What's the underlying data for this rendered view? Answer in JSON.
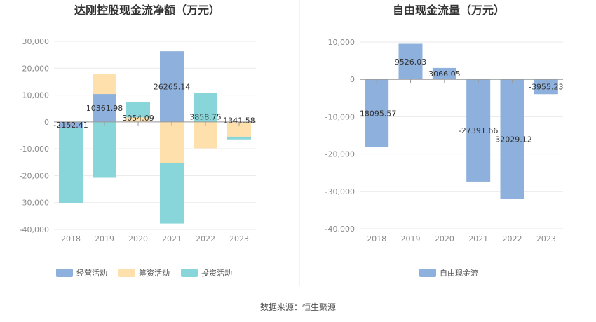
{
  "colors": {
    "operating": "#8eb0dd",
    "financing": "#fde0ac",
    "investing": "#88d6da",
    "free_cash_flow": "#8eb0dd",
    "grid": "#e9e9e9",
    "text": "#333333",
    "tick": "#8a8a8a",
    "divider": "#e6e6e6"
  },
  "source_text": "数据来源：恒生聚源",
  "chart_data": [
    {
      "type": "bar",
      "stacked": true,
      "title": "达刚控股现金流净额（万元）",
      "categories": [
        "2018",
        "2019",
        "2020",
        "2021",
        "2022",
        "2023"
      ],
      "ylim": [
        -40000,
        30000
      ],
      "yticks": [
        30000,
        20000,
        10000,
        0,
        -10000,
        -20000,
        -30000,
        -40000
      ],
      "ytick_labels": [
        "30,000",
        "20,000",
        "10,000",
        "0",
        "-10,000",
        "-20,000",
        "-30,000",
        "-40,000"
      ],
      "series": [
        {
          "name": "经营活动",
          "color_key": "operating",
          "values": [
            -2200,
            10400,
            0,
            26300,
            0,
            0
          ]
        },
        {
          "name": "筹资活动",
          "color_key": "financing",
          "values": [
            0,
            7500,
            1700,
            -15300,
            -9800,
            -5500
          ]
        },
        {
          "name": "投资活动",
          "color_key": "investing",
          "values": [
            -28000,
            -20800,
            5800,
            -22500,
            10800,
            -1000
          ]
        }
      ],
      "net_labels": [
        "-2152.41",
        "10361.98",
        "3054.09",
        "26265.14",
        "3858.75",
        "1341.58"
      ],
      "net_values": [
        -2152.41,
        10361.98,
        3054.09,
        26265.14,
        3858.75,
        1341.58
      ],
      "legend_position": "bottom",
      "grid": true
    },
    {
      "type": "bar",
      "title": "自由现金流量（万元）",
      "categories": [
        "2018",
        "2019",
        "2020",
        "2021",
        "2022",
        "2023"
      ],
      "ylim": [
        -40000,
        10000
      ],
      "yticks": [
        10000,
        0,
        -10000,
        -20000,
        -30000,
        -40000
      ],
      "ytick_labels": [
        "10,000",
        "0",
        "-10,000",
        "-20,000",
        "-30,000",
        "-40,000"
      ],
      "series": [
        {
          "name": "自由现金流",
          "color_key": "free_cash_flow",
          "values": [
            -18095.57,
            9526.03,
            3066.05,
            -27391.66,
            -32029.12,
            -3955.23
          ]
        }
      ],
      "value_labels": [
        "-18095.57",
        "9526.03",
        "3066.05",
        "-27391.66",
        "-32029.12",
        "-3955.23"
      ],
      "legend_position": "bottom",
      "grid": true
    }
  ]
}
